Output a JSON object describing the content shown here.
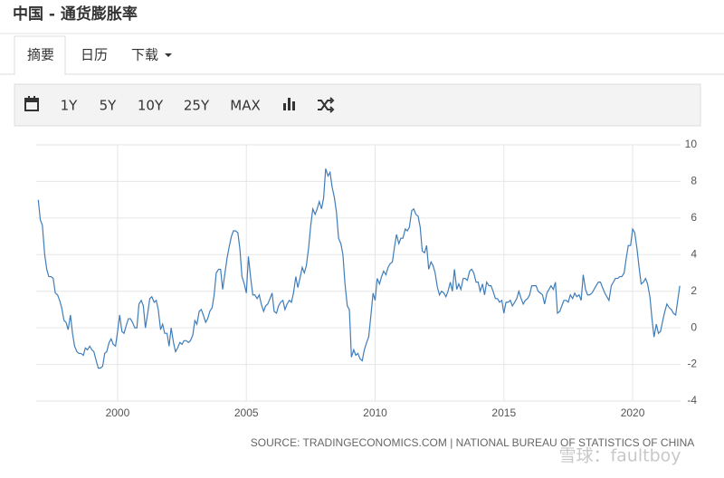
{
  "header": {
    "title": "中国 - 通货膨胀率"
  },
  "tabs": [
    "摘要",
    "日历",
    "下载"
  ],
  "toolbar": [
    "1Y",
    "5Y",
    "10Y",
    "25Y",
    "MAX"
  ],
  "chart_data": {
    "type": "line",
    "color": "#3f7dba",
    "xlim": [
      1996.84,
      2021.86
    ],
    "xticks": [
      2000,
      2005,
      2010,
      2015,
      2020
    ],
    "ylim": [
      -4,
      10
    ],
    "yticks": [
      -4,
      -2,
      0,
      2,
      4,
      6,
      8,
      10
    ],
    "grid": true,
    "x": [
      1996.92,
      1997,
      1997.08,
      1997.17,
      1997.25,
      1997.33,
      1997.42,
      1997.5,
      1997.58,
      1997.67,
      1997.75,
      1997.83,
      1997.92,
      1998,
      1998.08,
      1998.17,
      1998.25,
      1998.33,
      1998.42,
      1998.5,
      1998.58,
      1998.67,
      1998.75,
      1998.83,
      1998.92,
      1999,
      1999.08,
      1999.17,
      1999.25,
      1999.33,
      1999.42,
      1999.5,
      1999.58,
      1999.67,
      1999.75,
      1999.83,
      1999.92,
      2000,
      2000.08,
      2000.17,
      2000.25,
      2000.33,
      2000.42,
      2000.5,
      2000.58,
      2000.67,
      2000.75,
      2000.83,
      2000.92,
      2001,
      2001.08,
      2001.17,
      2001.25,
      2001.33,
      2001.42,
      2001.5,
      2001.58,
      2001.67,
      2001.75,
      2001.83,
      2001.92,
      2002,
      2002.08,
      2002.17,
      2002.25,
      2002.33,
      2002.42,
      2002.5,
      2002.58,
      2002.67,
      2002.75,
      2002.83,
      2002.92,
      2003,
      2003.08,
      2003.17,
      2003.25,
      2003.33,
      2003.42,
      2003.5,
      2003.58,
      2003.67,
      2003.75,
      2003.83,
      2003.92,
      2004,
      2004.08,
      2004.17,
      2004.25,
      2004.33,
      2004.42,
      2004.5,
      2004.58,
      2004.67,
      2004.75,
      2004.83,
      2004.92,
      2005,
      2005.08,
      2005.17,
      2005.25,
      2005.33,
      2005.42,
      2005.5,
      2005.58,
      2005.67,
      2005.75,
      2005.83,
      2005.92,
      2006,
      2006.08,
      2006.17,
      2006.25,
      2006.33,
      2006.42,
      2006.5,
      2006.58,
      2006.67,
      2006.75,
      2006.83,
      2006.92,
      2007,
      2007.08,
      2007.17,
      2007.25,
      2007.33,
      2007.42,
      2007.5,
      2007.58,
      2007.67,
      2007.75,
      2007.83,
      2007.92,
      2008,
      2008.08,
      2008.17,
      2008.25,
      2008.33,
      2008.42,
      2008.5,
      2008.58,
      2008.67,
      2008.75,
      2008.83,
      2008.92,
      2009,
      2009.08,
      2009.17,
      2009.25,
      2009.33,
      2009.42,
      2009.5,
      2009.58,
      2009.67,
      2009.75,
      2009.83,
      2009.92,
      2010,
      2010.08,
      2010.17,
      2010.25,
      2010.33,
      2010.42,
      2010.5,
      2010.58,
      2010.67,
      2010.75,
      2010.83,
      2010.92,
      2011,
      2011.08,
      2011.17,
      2011.25,
      2011.33,
      2011.42,
      2011.5,
      2011.58,
      2011.67,
      2011.75,
      2011.83,
      2011.92,
      2012,
      2012.08,
      2012.17,
      2012.25,
      2012.33,
      2012.42,
      2012.5,
      2012.58,
      2012.67,
      2012.75,
      2012.83,
      2012.92,
      2013,
      2013.08,
      2013.17,
      2013.25,
      2013.33,
      2013.42,
      2013.5,
      2013.58,
      2013.67,
      2013.75,
      2013.83,
      2013.92,
      2014,
      2014.08,
      2014.17,
      2014.25,
      2014.33,
      2014.42,
      2014.5,
      2014.58,
      2014.67,
      2014.75,
      2014.83,
      2014.92,
      2015,
      2015.08,
      2015.17,
      2015.25,
      2015.33,
      2015.42,
      2015.5,
      2015.58,
      2015.67,
      2015.75,
      2015.83,
      2015.92,
      2016,
      2016.08,
      2016.17,
      2016.25,
      2016.33,
      2016.42,
      2016.5,
      2016.58,
      2016.67,
      2016.75,
      2016.83,
      2016.92,
      2017,
      2017.08,
      2017.17,
      2017.25,
      2017.33,
      2017.42,
      2017.5,
      2017.58,
      2017.67,
      2017.75,
      2017.83,
      2017.92,
      2018,
      2018.08,
      2018.17,
      2018.25,
      2018.33,
      2018.42,
      2018.5,
      2018.58,
      2018.67,
      2018.75,
      2018.83,
      2018.92,
      2019,
      2019.08,
      2019.17,
      2019.25,
      2019.33,
      2019.42,
      2019.5,
      2019.58,
      2019.67,
      2019.75,
      2019.83,
      2019.92,
      2020,
      2020.08,
      2020.17,
      2020.25,
      2020.33,
      2020.42,
      2020.5,
      2020.58,
      2020.67,
      2020.75,
      2020.83,
      2020.92,
      2021,
      2021.08,
      2021.17,
      2021.25,
      2021.33,
      2021.42,
      2021.5,
      2021.58,
      2021.67,
      2021.75,
      2021.83
    ],
    "values": [
      7.0,
      5.9,
      5.6,
      4.0,
      3.2,
      2.8,
      2.8,
      2.7,
      1.9,
      1.8,
      1.5,
      1.1,
      0.4,
      0.3,
      -0.1,
      0.7,
      -0.3,
      -1.0,
      -1.3,
      -1.4,
      -1.4,
      -1.5,
      -1.1,
      -1.2,
      -1.0,
      -1.2,
      -1.3,
      -1.8,
      -2.2,
      -2.2,
      -2.1,
      -1.4,
      -1.3,
      -0.8,
      -0.6,
      -0.9,
      -1.0,
      -0.2,
      0.7,
      -0.2,
      -0.3,
      0.1,
      0.5,
      0.5,
      0.3,
      0.0,
      0.0,
      1.3,
      1.5,
      1.2,
      0.0,
      0.8,
      1.6,
      1.7,
      1.4,
      1.5,
      1.0,
      -0.1,
      0.2,
      -0.3,
      -0.3,
      -1.0,
      0.0,
      -0.8,
      -1.3,
      -1.1,
      -0.8,
      -0.9,
      -0.7,
      -0.7,
      -0.8,
      -0.7,
      -0.4,
      0.4,
      0.2,
      0.9,
      1.0,
      0.7,
      0.3,
      0.5,
      0.9,
      1.1,
      1.8,
      3.0,
      3.2,
      3.2,
      2.1,
      3.0,
      3.8,
      4.4,
      5.0,
      5.3,
      5.3,
      5.2,
      4.3,
      2.8,
      2.4,
      1.9,
      3.9,
      2.7,
      1.8,
      1.8,
      1.6,
      1.8,
      1.3,
      0.9,
      1.2,
      1.3,
      1.6,
      1.9,
      0.9,
      0.8,
      1.2,
      1.4,
      1.5,
      1.0,
      1.3,
      1.5,
      1.4,
      1.9,
      2.8,
      2.2,
      2.7,
      3.3,
      3.0,
      3.4,
      4.4,
      5.6,
      6.5,
      6.2,
      6.5,
      6.9,
      6.5,
      7.1,
      8.7,
      8.3,
      8.5,
      7.7,
      7.1,
      6.3,
      4.9,
      4.6,
      4.0,
      2.4,
      1.2,
      1.0,
      -1.6,
      -1.2,
      -1.5,
      -1.4,
      -1.7,
      -1.8,
      -1.2,
      -0.8,
      -0.5,
      0.6,
      1.9,
      1.5,
      2.7,
      2.4,
      2.8,
      3.1,
      2.9,
      3.3,
      3.5,
      3.6,
      4.4,
      5.1,
      4.6,
      4.9,
      4.9,
      5.4,
      5.3,
      5.5,
      6.4,
      6.5,
      6.2,
      6.1,
      5.5,
      4.2,
      4.1,
      4.5,
      3.2,
      3.6,
      3.4,
      3.0,
      2.2,
      1.8,
      2.0,
      1.9,
      1.7,
      2.0,
      2.5,
      2.0,
      3.2,
      2.1,
      2.4,
      2.1,
      2.7,
      2.7,
      2.6,
      3.1,
      3.2,
      3.0,
      2.5,
      2.5,
      2.0,
      2.4,
      1.8,
      2.5,
      2.3,
      2.3,
      2.0,
      1.6,
      1.6,
      1.4,
      1.5,
      0.8,
      1.4,
      1.4,
      1.5,
      1.2,
      1.4,
      1.6,
      2.0,
      1.6,
      1.3,
      1.5,
      1.6,
      1.8,
      2.3,
      2.3,
      2.3,
      2.0,
      1.9,
      1.8,
      1.3,
      1.9,
      2.1,
      2.3,
      2.1,
      2.5,
      0.8,
      0.9,
      1.2,
      1.5,
      1.5,
      1.4,
      1.8,
      1.6,
      1.9,
      1.7,
      1.8,
      1.5,
      2.9,
      2.1,
      1.8,
      1.8,
      1.9,
      2.1,
      2.3,
      2.5,
      2.5,
      2.2,
      1.9,
      1.7,
      1.5,
      2.3,
      2.5,
      2.7,
      2.7,
      2.8,
      2.8,
      3.0,
      3.8,
      4.5,
      4.5,
      5.4,
      5.2,
      4.3,
      3.3,
      2.4,
      2.5,
      2.7,
      2.4,
      1.7,
      0.5,
      -0.5,
      0.2,
      -0.3,
      -0.2,
      0.4,
      0.9,
      1.3,
      1.1,
      1.0,
      0.8,
      0.7,
      1.5,
      2.3
    ]
  },
  "source": "SOURCE: TRADINGECONOMICS.COM | NATIONAL BUREAU OF STATISTICS OF CHINA",
  "watermark": "雪球：faultboy"
}
